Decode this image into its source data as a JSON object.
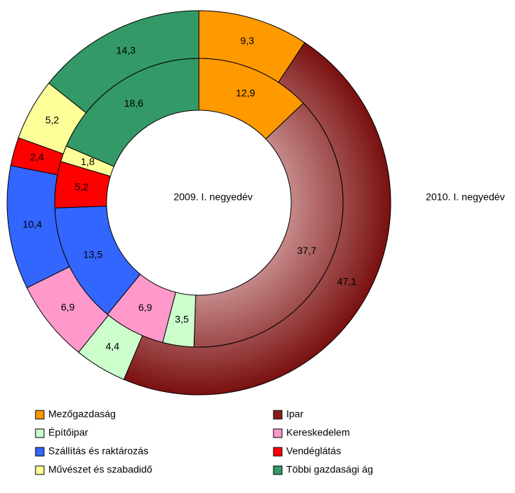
{
  "chart_data": {
    "type": "donut",
    "categories": [
      "Mezőgazdaság",
      "Ipar",
      "Építőipar",
      "Kereskedelem",
      "Szállítás és raktározás",
      "Vendéglátás",
      "Művészet és szabadidő",
      "Többi gazdasági ág"
    ],
    "colors": [
      "#ff9900",
      "#8b1c1c",
      "#ccffcc",
      "#ff99cc",
      "#3366ff",
      "#ff0000",
      "#ffff99",
      "#339966"
    ],
    "series": [
      {
        "name": "2009. I. negyedév",
        "values": [
          12.9,
          37.7,
          3.5,
          6.9,
          13.5,
          5.2,
          1.8,
          18.6
        ],
        "value_labels": [
          "12,9",
          "37,7",
          "3,5",
          "6,9",
          "13,5",
          "5,2",
          "1,8",
          "18,6"
        ]
      },
      {
        "name": "2010. I. negyedév",
        "values": [
          9.3,
          47.1,
          4.4,
          6.9,
          10.4,
          2.4,
          5.2,
          14.3
        ],
        "value_labels": [
          "9,3",
          "47,1",
          "4,4",
          "6,9",
          "10,4",
          "2,4",
          "5,2",
          "14,3"
        ]
      }
    ],
    "legend": "bottom"
  }
}
